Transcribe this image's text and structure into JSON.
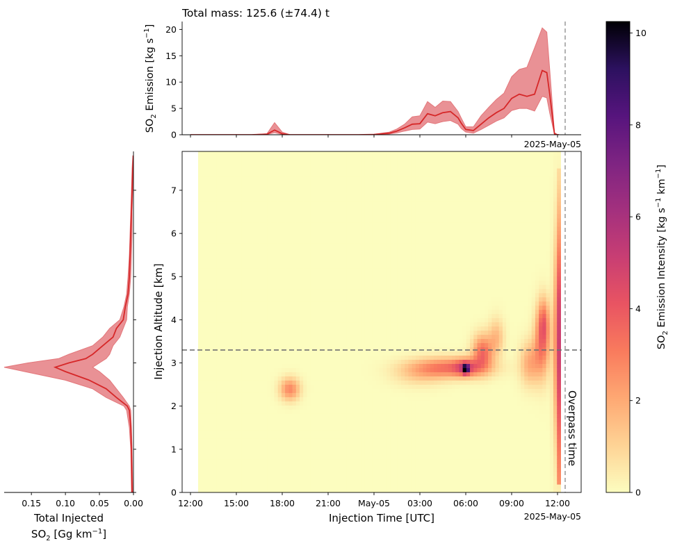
{
  "title": "Total mass: 125.6 (±74.4) t",
  "overpass_label": "Overpass time",
  "colors": {
    "line": "#d62728",
    "band": "#e3767a",
    "overpass": "#a0a0a0",
    "hline": "#707070"
  },
  "chart_data": [
    {
      "panel": "top",
      "type": "area",
      "ylabel_main": "SO",
      "ylabel_sub": "2",
      "ylabel_rest": " Emission [kg s",
      "ylabel_sup": "−1",
      "ylabel_end": "]",
      "ylim": [
        0,
        21.5
      ],
      "yticks": [
        0,
        5,
        10,
        15,
        20
      ],
      "date_label": "2025-May-05",
      "x_hours": [
        0,
        1,
        2,
        3,
        4,
        5,
        5.5,
        6,
        6.5,
        7,
        8,
        9,
        10,
        11,
        12,
        13,
        13.5,
        14,
        14.5,
        15,
        15.5,
        16,
        16.5,
        17,
        17.5,
        17.7,
        18,
        18.5,
        19,
        19.5,
        20,
        20.5,
        21,
        21.5,
        22,
        22.5,
        23,
        23.3,
        23.5,
        23.8,
        24.0,
        24.1
      ],
      "y_mean": [
        0,
        0,
        0,
        0,
        0,
        0.1,
        0.9,
        0.2,
        0,
        0,
        0,
        0,
        0,
        0,
        0.05,
        0.3,
        0.7,
        1.3,
        2.0,
        2.1,
        4.0,
        3.6,
        4.2,
        4.4,
        3.2,
        2.2,
        1.0,
        0.8,
        2.0,
        3.2,
        4.2,
        5.0,
        6.9,
        7.7,
        7.3,
        7.7,
        12.2,
        11.8,
        7.5,
        0.2,
        0.0,
        0.0
      ],
      "y_upper": [
        0,
        0,
        0,
        0,
        0,
        0.2,
        2.3,
        0.5,
        0,
        0,
        0,
        0,
        0,
        0,
        0.1,
        0.5,
        1.1,
        2.0,
        3.4,
        3.6,
        6.3,
        5.2,
        6.4,
        6.3,
        4.4,
        3.2,
        1.5,
        1.5,
        3.6,
        5.2,
        6.7,
        7.9,
        11.0,
        12.4,
        12.8,
        16.5,
        20.3,
        19.5,
        12.0,
        0.4,
        0.0,
        0.0
      ],
      "y_lower": [
        0,
        0,
        0,
        0,
        0,
        0.05,
        0.4,
        0.05,
        0,
        0,
        0,
        0,
        0,
        0,
        0.02,
        0.15,
        0.35,
        0.7,
        1.0,
        1.1,
        2.4,
        2.1,
        2.5,
        2.7,
        2.0,
        1.2,
        0.5,
        0.3,
        1.0,
        1.8,
        2.6,
        3.2,
        4.6,
        5.0,
        5.0,
        4.5,
        7.3,
        7.0,
        4.0,
        0.1,
        0.0,
        0.0
      ]
    },
    {
      "panel": "left",
      "type": "area",
      "xlabel_line1": "Total Injected",
      "xlabel_main": "SO",
      "xlabel_sub": "2",
      "xlabel_rest": " [Gg km",
      "xlabel_sup": "−1",
      "xlabel_end": "]",
      "xlim": [
        0.19,
        0.0
      ],
      "xticks": [
        0.15,
        0.1,
        0.05,
        0.0
      ],
      "xtick_labels": [
        "0.15",
        "0.10",
        "0.05",
        "0.00"
      ],
      "alt_km": [
        0.0,
        1.0,
        1.5,
        1.9,
        2.0,
        2.2,
        2.4,
        2.6,
        2.8,
        2.9,
        3.0,
        3.1,
        3.2,
        3.4,
        3.6,
        3.8,
        4.0,
        4.3,
        4.6,
        5.0,
        5.5,
        6.0,
        6.5,
        7.0,
        7.5,
        7.8
      ],
      "x_mean": [
        0.002,
        0.003,
        0.004,
        0.006,
        0.009,
        0.025,
        0.04,
        0.065,
        0.1,
        0.115,
        0.095,
        0.07,
        0.06,
        0.045,
        0.03,
        0.025,
        0.015,
        0.012,
        0.008,
        0.006,
        0.005,
        0.004,
        0.003,
        0.002,
        0.001,
        0.0
      ],
      "x_upper": [
        0.003,
        0.004,
        0.006,
        0.01,
        0.014,
        0.04,
        0.06,
        0.1,
        0.16,
        0.19,
        0.155,
        0.11,
        0.095,
        0.06,
        0.045,
        0.035,
        0.02,
        0.014,
        0.01,
        0.008,
        0.006,
        0.005,
        0.004,
        0.003,
        0.002,
        0.001
      ],
      "x_lower": [
        0.001,
        0.002,
        0.003,
        0.004,
        0.006,
        0.015,
        0.025,
        0.035,
        0.05,
        0.06,
        0.05,
        0.04,
        0.035,
        0.03,
        0.02,
        0.015,
        0.01,
        0.009,
        0.006,
        0.004,
        0.003,
        0.002,
        0.002,
        0.001,
        0.001,
        0.0
      ]
    },
    {
      "panel": "main",
      "type": "heatmap",
      "xlabel": "Injection Time [UTC]",
      "ylabel": "Injection Altitude [km]",
      "date_label": "2025-May-05",
      "xtick_labels": [
        "12:00",
        "15:00",
        "18:00",
        "21:00",
        "May-05",
        "03:00",
        "06:00",
        "09:00",
        "12:00"
      ],
      "xtick_hours": [
        0,
        3,
        6,
        9,
        12,
        15,
        18,
        21,
        24
      ],
      "ylim": [
        0,
        7.9
      ],
      "yticks": [
        0,
        1,
        2,
        3,
        4,
        5,
        6,
        7
      ],
      "data_x_range_hours": [
        0.5,
        24.2
      ],
      "hline_alt_km": 3.3,
      "overpass_hour": 24.5,
      "colorbar": {
        "label_main": "SO",
        "label_sub": "2",
        "label_rest": " Emission Intensity [kg s",
        "label_sup1": "−1",
        "label_mid": " km",
        "label_sup2": "−1",
        "label_end": "]",
        "range": [
          0,
          10.25
        ],
        "ticks": [
          0,
          2,
          4,
          6,
          8,
          10
        ],
        "colormap": "magma_r"
      },
      "blobs": [
        {
          "t": 6.5,
          "alt": 2.4,
          "st": 0.45,
          "sa": 0.18,
          "amp": 2.8
        },
        {
          "t": 17.0,
          "alt": 2.9,
          "st": 1.7,
          "sa": 0.16,
          "amp": 3.2
        },
        {
          "t": 18.0,
          "alt": 2.9,
          "st": 0.5,
          "sa": 0.14,
          "amp": 2.5
        },
        {
          "t": 18.0,
          "alt": 2.87,
          "st": 0.13,
          "sa": 0.07,
          "amp": 8.5
        },
        {
          "t": 19.1,
          "alt": 3.25,
          "st": 0.45,
          "sa": 0.28,
          "amp": 3.5
        },
        {
          "t": 20.0,
          "alt": 3.6,
          "st": 0.35,
          "sa": 0.3,
          "amp": 1.6
        },
        {
          "t": 15.0,
          "alt": 2.75,
          "st": 1.2,
          "sa": 0.2,
          "amp": 1.0
        },
        {
          "t": 22.2,
          "alt": 3.0,
          "st": 0.45,
          "sa": 0.35,
          "amp": 2.0
        },
        {
          "t": 23.0,
          "alt": 3.5,
          "st": 0.35,
          "sa": 0.55,
          "amp": 3.2
        },
        {
          "t": 23.1,
          "alt": 4.0,
          "st": 0.25,
          "sa": 0.35,
          "amp": 2.0
        },
        {
          "t": 24.0,
          "alt": 3.5,
          "st": 0.2,
          "sa": 1.7,
          "amp": 3.0
        }
      ]
    }
  ]
}
